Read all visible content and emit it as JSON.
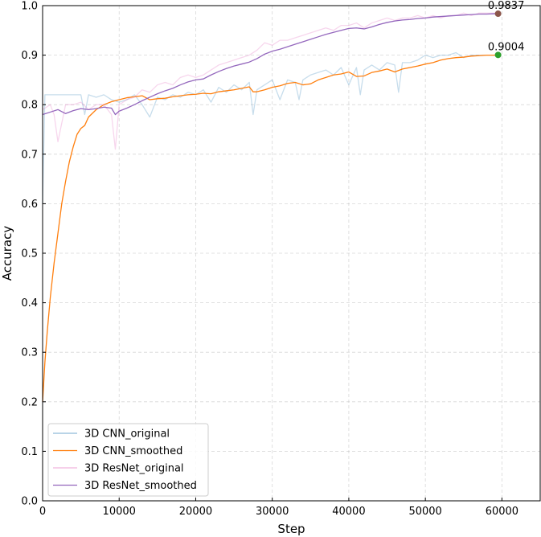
{
  "chart_data": {
    "type": "line",
    "title": "",
    "xlabel": "Step",
    "ylabel": "Accuracy",
    "xlim": [
      0,
      65000
    ],
    "ylim": [
      0.0,
      1.0
    ],
    "xticks": [
      0,
      10000,
      20000,
      30000,
      40000,
      50000,
      60000
    ],
    "yticks": [
      0.0,
      0.1,
      0.2,
      0.3,
      0.4,
      0.5,
      0.6,
      0.7,
      0.8,
      0.9,
      1.0
    ],
    "xtick_labels": [
      "0",
      "10000",
      "20000",
      "30000",
      "40000",
      "50000",
      "60000"
    ],
    "ytick_labels": [
      "0.0",
      "0.1",
      "0.2",
      "0.3",
      "0.4",
      "0.5",
      "0.6",
      "0.7",
      "0.8",
      "0.9",
      "1.0"
    ],
    "grid": true,
    "legend_position": "lower-left",
    "series": [
      {
        "name": "3D CNN_original",
        "color": "#1f77b4",
        "opacity": 0.25,
        "x": [
          0,
          300,
          600,
          1000,
          2000,
          3000,
          4000,
          5000,
          5500,
          6000,
          7000,
          8000,
          9000,
          10000,
          11000,
          12000,
          13000,
          14000,
          15000,
          16000,
          17000,
          18000,
          19000,
          20000,
          21000,
          22000,
          23000,
          24000,
          25000,
          26000,
          27000,
          27500,
          28000,
          29000,
          30000,
          31000,
          32000,
          33000,
          33500,
          34000,
          35000,
          36000,
          37000,
          38000,
          39000,
          40000,
          41000,
          41500,
          42000,
          43000,
          44000,
          45000,
          46000,
          46500,
          47000,
          48000,
          49000,
          50000,
          51000,
          52000,
          53000,
          54000,
          55000,
          56000,
          57000,
          58000,
          59000,
          59500
        ],
        "y": [
          0.6,
          0.82,
          0.82,
          0.82,
          0.82,
          0.82,
          0.82,
          0.82,
          0.78,
          0.82,
          0.815,
          0.82,
          0.81,
          0.805,
          0.81,
          0.82,
          0.8,
          0.775,
          0.815,
          0.81,
          0.82,
          0.815,
          0.825,
          0.82,
          0.83,
          0.805,
          0.835,
          0.825,
          0.84,
          0.83,
          0.845,
          0.78,
          0.83,
          0.84,
          0.85,
          0.81,
          0.85,
          0.845,
          0.81,
          0.85,
          0.86,
          0.865,
          0.87,
          0.86,
          0.875,
          0.84,
          0.875,
          0.82,
          0.87,
          0.88,
          0.87,
          0.885,
          0.88,
          0.825,
          0.885,
          0.885,
          0.89,
          0.9,
          0.895,
          0.9,
          0.9,
          0.905,
          0.895,
          0.9,
          0.9,
          0.9,
          0.9,
          0.9
        ]
      },
      {
        "name": "3D CNN_smoothed",
        "color": "#ff7f0e",
        "opacity": 1,
        "x": [
          0,
          300,
          600,
          1000,
          1500,
          2000,
          2500,
          3000,
          3500,
          4000,
          4500,
          5000,
          5500,
          6000,
          7000,
          8000,
          9000,
          10000,
          11000,
          12000,
          13000,
          14000,
          15000,
          16000,
          17000,
          18000,
          19000,
          20000,
          21000,
          22000,
          23000,
          24000,
          25000,
          26000,
          27000,
          27500,
          28000,
          29000,
          30000,
          31000,
          32000,
          33000,
          34000,
          35000,
          36000,
          37000,
          38000,
          39000,
          40000,
          41000,
          42000,
          43000,
          44000,
          45000,
          46000,
          47000,
          48000,
          49000,
          50000,
          51000,
          52000,
          53000,
          54000,
          55000,
          56000,
          57000,
          58000,
          59000,
          59500
        ],
        "y": [
          0.2,
          0.28,
          0.34,
          0.41,
          0.48,
          0.54,
          0.6,
          0.645,
          0.685,
          0.715,
          0.74,
          0.752,
          0.758,
          0.775,
          0.79,
          0.8,
          0.806,
          0.81,
          0.814,
          0.816,
          0.818,
          0.81,
          0.812,
          0.813,
          0.816,
          0.818,
          0.82,
          0.821,
          0.823,
          0.822,
          0.826,
          0.828,
          0.83,
          0.833,
          0.836,
          0.826,
          0.826,
          0.83,
          0.835,
          0.838,
          0.843,
          0.845,
          0.84,
          0.842,
          0.85,
          0.855,
          0.86,
          0.862,
          0.866,
          0.857,
          0.858,
          0.865,
          0.868,
          0.872,
          0.866,
          0.872,
          0.875,
          0.878,
          0.882,
          0.885,
          0.89,
          0.893,
          0.895,
          0.896,
          0.898,
          0.899,
          0.9,
          0.9,
          0.9004
        ]
      },
      {
        "name": "3D ResNet_original",
        "color": "#e377c2",
        "opacity": 0.3,
        "x": [
          0,
          1000,
          1500,
          2000,
          3000,
          4000,
          5000,
          6000,
          7000,
          8000,
          9000,
          9500,
          10000,
          11000,
          12000,
          13000,
          14000,
          15000,
          16000,
          17000,
          18000,
          19000,
          20000,
          21000,
          22000,
          23000,
          24000,
          25000,
          26000,
          27000,
          28000,
          29000,
          30000,
          31000,
          32000,
          33000,
          34000,
          35000,
          36000,
          37000,
          38000,
          39000,
          40000,
          41000,
          42000,
          43000,
          44000,
          45000,
          46000,
          47000,
          48000,
          49000,
          50000,
          51000,
          52000,
          53000,
          54000,
          55000,
          56000,
          57000,
          58000,
          59000,
          59500
        ],
        "y": [
          0.79,
          0.8,
          0.78,
          0.725,
          0.8,
          0.8,
          0.805,
          0.79,
          0.8,
          0.8,
          0.78,
          0.71,
          0.8,
          0.81,
          0.815,
          0.83,
          0.825,
          0.84,
          0.845,
          0.84,
          0.855,
          0.86,
          0.855,
          0.86,
          0.87,
          0.88,
          0.885,
          0.89,
          0.895,
          0.9,
          0.91,
          0.925,
          0.92,
          0.93,
          0.93,
          0.935,
          0.94,
          0.945,
          0.95,
          0.955,
          0.95,
          0.96,
          0.96,
          0.965,
          0.955,
          0.965,
          0.97,
          0.975,
          0.97,
          0.975,
          0.975,
          0.98,
          0.975,
          0.98,
          0.975,
          0.98,
          0.98,
          0.985,
          0.98,
          0.985,
          0.985,
          0.985,
          0.985
        ]
      },
      {
        "name": "3D ResNet_smoothed",
        "color": "#9467bd",
        "opacity": 1,
        "x": [
          0,
          1000,
          2000,
          3000,
          4000,
          5000,
          6000,
          7000,
          8000,
          9000,
          9500,
          10000,
          11000,
          12000,
          13000,
          14000,
          15000,
          16000,
          17000,
          18000,
          19000,
          20000,
          21000,
          22000,
          23000,
          24000,
          25000,
          26000,
          27000,
          28000,
          29000,
          30000,
          31000,
          32000,
          33000,
          34000,
          35000,
          36000,
          37000,
          38000,
          39000,
          40000,
          41000,
          42000,
          43000,
          44000,
          45000,
          46000,
          47000,
          48000,
          49000,
          50000,
          51000,
          52000,
          53000,
          54000,
          55000,
          56000,
          57000,
          58000,
          59000,
          59500
        ],
        "y": [
          0.78,
          0.785,
          0.79,
          0.782,
          0.788,
          0.792,
          0.79,
          0.792,
          0.795,
          0.793,
          0.78,
          0.787,
          0.793,
          0.8,
          0.808,
          0.815,
          0.822,
          0.828,
          0.833,
          0.84,
          0.846,
          0.85,
          0.852,
          0.86,
          0.867,
          0.873,
          0.878,
          0.882,
          0.886,
          0.893,
          0.902,
          0.908,
          0.912,
          0.917,
          0.922,
          0.927,
          0.932,
          0.937,
          0.942,
          0.946,
          0.95,
          0.954,
          0.955,
          0.953,
          0.957,
          0.962,
          0.966,
          0.969,
          0.971,
          0.972,
          0.974,
          0.975,
          0.977,
          0.978,
          0.979,
          0.98,
          0.981,
          0.982,
          0.983,
          0.983,
          0.9837,
          0.9837
        ]
      }
    ],
    "annotations": [
      {
        "text": "0.9837",
        "x": 59500,
        "y": 0.9837,
        "marker_color": "#8c564b"
      },
      {
        "text": "0.9004",
        "x": 59500,
        "y": 0.9004,
        "marker_color": "#2ca02c"
      }
    ]
  }
}
